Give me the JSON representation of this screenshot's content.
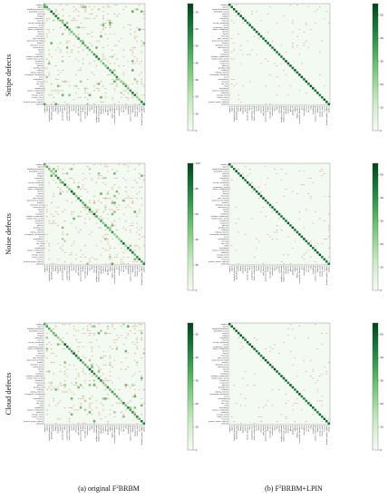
{
  "figure": {
    "row_labels": [
      "Stripe defects",
      "Noise defects",
      "Cloud defects"
    ],
    "captions": [
      {
        "prefix": "(a) original F",
        "sup": "2",
        "suffix": "BRBM"
      },
      {
        "prefix": "(b) F",
        "sup": "2",
        "suffix": "BRBM+LPIN"
      }
    ]
  },
  "chart_data": [
    {
      "type": "heatmap",
      "panel": "stripe-original",
      "title": "",
      "colorbar_ticks": [
        0,
        10,
        20,
        30,
        40,
        50,
        60,
        70
      ],
      "colorbar_max": 75,
      "cmap": "Greens",
      "annotation_color": "#e0605a",
      "off_diagonal": "heavy"
    },
    {
      "type": "heatmap",
      "panel": "stripe-lpin",
      "title": "",
      "colorbar_ticks": [
        0,
        10,
        20,
        30,
        40,
        50
      ],
      "colorbar_max": 55,
      "cmap": "Greens",
      "annotation_color": "#e0605a",
      "off_diagonal": "light"
    },
    {
      "type": "heatmap",
      "panel": "noise-original",
      "title": "",
      "colorbar_ticks": [
        0,
        20,
        40,
        60,
        80,
        100
      ],
      "colorbar_max": 100,
      "cmap": "Greens",
      "annotation_color": "#e0605a",
      "off_diagonal": "heavy"
    },
    {
      "type": "heatmap",
      "panel": "noise-lpin",
      "title": "",
      "colorbar_ticks": [
        0,
        10,
        20,
        30,
        40,
        50
      ],
      "colorbar_max": 55,
      "cmap": "Greens",
      "annotation_color": "#e0605a",
      "off_diagonal": "light"
    },
    {
      "type": "heatmap",
      "panel": "cloud-original",
      "title": "",
      "colorbar_ticks": [
        0,
        10,
        20,
        30,
        40,
        50
      ],
      "colorbar_max": 55,
      "cmap": "Greens",
      "annotation_color": "#e0605a",
      "off_diagonal": "heavy"
    },
    {
      "type": "heatmap",
      "panel": "cloud-lpin",
      "title": "",
      "colorbar_ticks": [
        0,
        10,
        20,
        30,
        40,
        50
      ],
      "colorbar_max": 55,
      "cmap": "Greens",
      "annotation_color": "#e0605a",
      "off_diagonal": "light"
    }
  ],
  "class_labels": [
    "airplane",
    "airport",
    "baseball_diamond",
    "basketball_court",
    "beach",
    "bridge",
    "chaparral",
    "church",
    "circular_farmland",
    "cloud",
    "commercial_area",
    "dense_residential",
    "desert",
    "forest",
    "freeway",
    "golf_course",
    "ground_track_field",
    "harbor",
    "industrial_area",
    "intersection",
    "island",
    "lake",
    "meadow",
    "medium_residential",
    "mobile_home_park",
    "mountain",
    "overpass",
    "palace",
    "parking_lot",
    "railway",
    "railway_station",
    "rectangular_farmland",
    "river",
    "roundabout",
    "runway",
    "sea_ice",
    "ship",
    "snowberg",
    "sparse_residential",
    "stadium",
    "storage_tank",
    "tennis_court",
    "terrace",
    "thermal_power_station",
    "wetland"
  ]
}
